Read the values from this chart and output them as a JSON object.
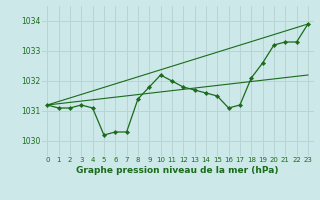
{
  "bg_color": "#cce8e8",
  "grid_color": "#b8d4d4",
  "line_color": "#1a6b1a",
  "marker_color": "#1a6b1a",
  "xlabel": "Graphe pression niveau de la mer (hPa)",
  "ylim": [
    1029.5,
    1034.5
  ],
  "xlim": [
    -0.5,
    23.5
  ],
  "yticks": [
    1030,
    1031,
    1032,
    1033,
    1034
  ],
  "xticks": [
    0,
    1,
    2,
    3,
    4,
    5,
    6,
    7,
    8,
    9,
    10,
    11,
    12,
    13,
    14,
    15,
    16,
    17,
    18,
    19,
    20,
    21,
    22,
    23
  ],
  "series_main": [
    1031.2,
    1031.1,
    1031.1,
    1031.2,
    1031.1,
    1030.2,
    1030.3,
    1030.3,
    1031.4,
    1031.8,
    1032.2,
    1032.0,
    1031.8,
    1031.7,
    1031.6,
    1031.5,
    1031.1,
    1031.2,
    1032.1,
    1032.6,
    1033.2,
    1033.3,
    1033.3,
    1033.9
  ],
  "series_trend1_x": [
    0,
    23
  ],
  "series_trend1_y": [
    1031.2,
    1032.2
  ],
  "series_trend2_x": [
    0,
    23
  ],
  "series_trend2_y": [
    1031.2,
    1033.9
  ]
}
